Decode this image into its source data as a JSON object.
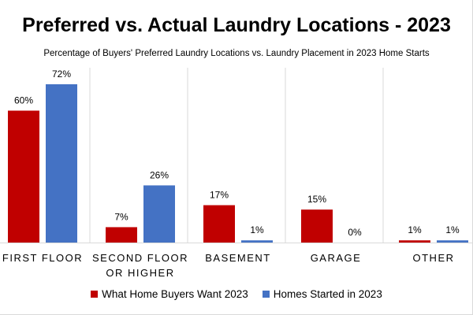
{
  "chart_data": {
    "type": "bar",
    "title": "Preferred vs. Actual Laundry Locations - 2023",
    "subtitle": "Percentage of Buyers' Preferred Laundry Locations vs. Laundry Placement in 2023 Home Starts",
    "categories": [
      [
        "FIRST FLOOR"
      ],
      [
        "SECOND FLOOR",
        "OR HIGHER"
      ],
      [
        "BASEMENT"
      ],
      [
        "GARAGE"
      ],
      [
        "OTHER"
      ]
    ],
    "series": [
      {
        "name": "What Home Buyers Want 2023",
        "color": "#c00000",
        "values": [
          60,
          7,
          17,
          15,
          1
        ],
        "labels": [
          "60%",
          "7%",
          "17%",
          "15%",
          "1%"
        ]
      },
      {
        "name": "Homes Started in 2023",
        "color": "#4472c4",
        "values": [
          72,
          26,
          1,
          0,
          1
        ],
        "labels": [
          "72%",
          "26%",
          "1%",
          "0%",
          "1%"
        ]
      }
    ],
    "ylim": [
      0,
      80
    ],
    "xlabel": "",
    "ylabel": "",
    "grid": false,
    "legend": "bottom"
  }
}
